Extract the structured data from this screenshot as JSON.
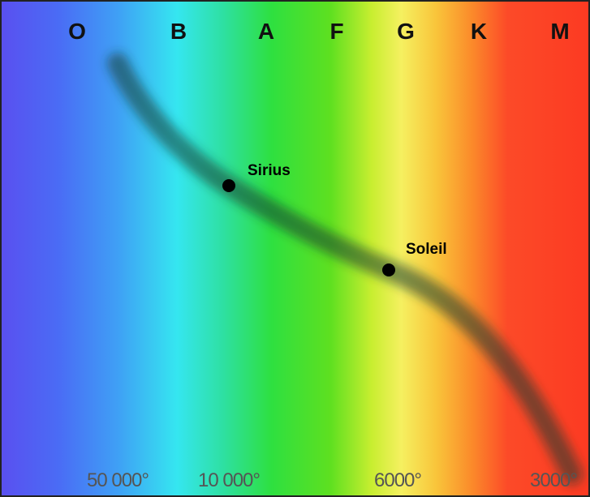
{
  "spectral_classes": [
    "O",
    "B",
    "A",
    "F",
    "G",
    "K",
    "M"
  ],
  "temperatures": [
    "50 000°",
    "10 000°",
    "6000°",
    "3000°"
  ],
  "stars": [
    {
      "label": "Sirius"
    },
    {
      "label": "Soleil"
    }
  ]
}
